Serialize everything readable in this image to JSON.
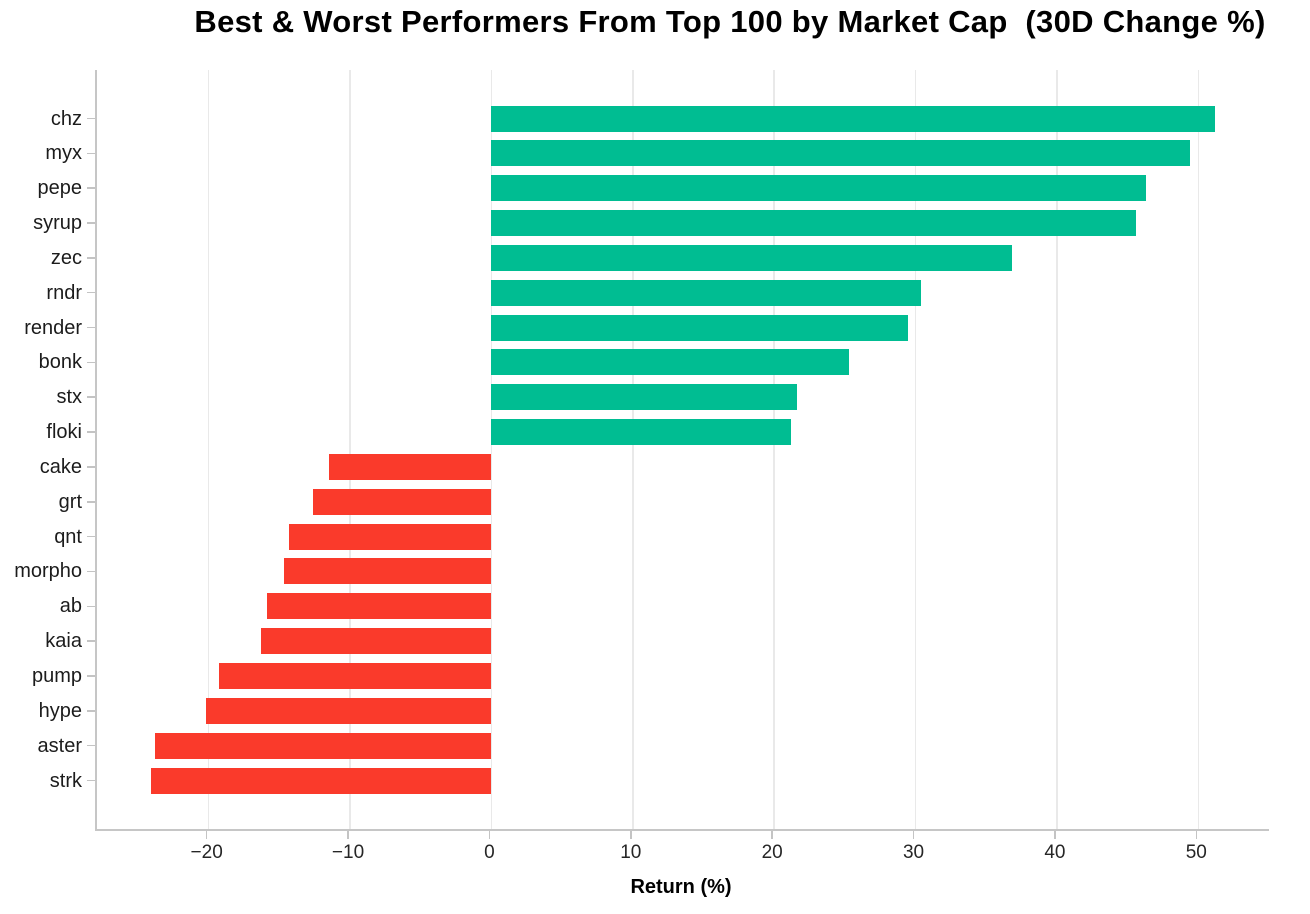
{
  "chart_data": {
    "type": "bar",
    "orientation": "horizontal",
    "title": "Best & Worst Performers From Top 100 by Market Cap  (30D Change %)",
    "xlabel": "Return (%)",
    "categories": [
      "chz",
      "myx",
      "pepe",
      "syrup",
      "zec",
      "rndr",
      "render",
      "bonk",
      "stx",
      "floki",
      "cake",
      "grt",
      "qnt",
      "morpho",
      "ab",
      "kaia",
      "pump",
      "hype",
      "aster",
      "strk"
    ],
    "values": [
      51.2,
      49.4,
      46.3,
      45.6,
      36.8,
      30.4,
      29.5,
      25.3,
      21.6,
      21.2,
      -11.5,
      -12.6,
      -14.3,
      -14.7,
      -15.9,
      -16.3,
      -19.3,
      -20.2,
      -23.8,
      -24.1
    ],
    "xlim": [
      -27.9,
      55.0
    ],
    "xticks": [
      -20,
      -10,
      0,
      10,
      20,
      30,
      40,
      50
    ],
    "xtick_labels": [
      "−20",
      "−10",
      "0",
      "10",
      "20",
      "30",
      "40",
      "50"
    ],
    "grid": "vertical-only",
    "legend": "none",
    "colors": {
      "positive": "#00bd92",
      "negative": "#fa3a2b",
      "spine": "#c6c6c6",
      "grid": "#e9e9e9",
      "tick": "#c4c4c4",
      "text": "#1c1c1c"
    }
  }
}
